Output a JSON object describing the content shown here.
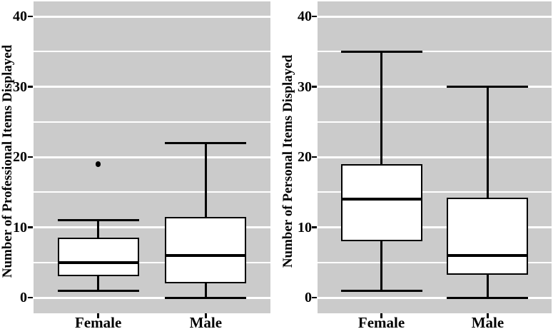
{
  "style": {
    "panel_bg": "#cbcbcb",
    "grid_color": "#ffffff",
    "line_color": "#000000",
    "box_fill": "#ffffff",
    "text_color": "#000000",
    "background": "#ffffff"
  },
  "chart_data": [
    {
      "type": "boxplot",
      "title": "",
      "xlabel": "",
      "ylabel": "Number of Professional Items Displayed",
      "categories": [
        "Female",
        "Male"
      ],
      "ylim": [
        0,
        40
      ],
      "yticks": [
        0,
        10,
        20,
        30,
        40
      ],
      "minor_gridlines": [
        5,
        15,
        25,
        35
      ],
      "grid": "on",
      "legend": "none",
      "series": [
        {
          "category": "Female",
          "whisker_low": 1,
          "q1": 3,
          "median": 5,
          "q3": 8.5,
          "whisker_high": 11,
          "outliers": [
            19
          ]
        },
        {
          "category": "Male",
          "whisker_low": 0,
          "q1": 2,
          "median": 6,
          "q3": 11.5,
          "whisker_high": 22,
          "outliers": []
        }
      ]
    },
    {
      "type": "boxplot",
      "title": "",
      "xlabel": "",
      "ylabel": "Number of Personal Items Displayed",
      "categories": [
        "Female",
        "Male"
      ],
      "ylim": [
        0,
        40
      ],
      "yticks": [
        0,
        10,
        20,
        30,
        40
      ],
      "minor_gridlines": [
        5,
        15,
        25,
        35
      ],
      "grid": "on",
      "legend": "none",
      "series": [
        {
          "category": "Female",
          "whisker_low": 1,
          "q1": 8,
          "median": 14,
          "q3": 19,
          "whisker_high": 35,
          "outliers": []
        },
        {
          "category": "Male",
          "whisker_low": 0,
          "q1": 3.25,
          "median": 6,
          "q3": 14.25,
          "whisker_high": 30,
          "outliers": []
        }
      ]
    }
  ]
}
